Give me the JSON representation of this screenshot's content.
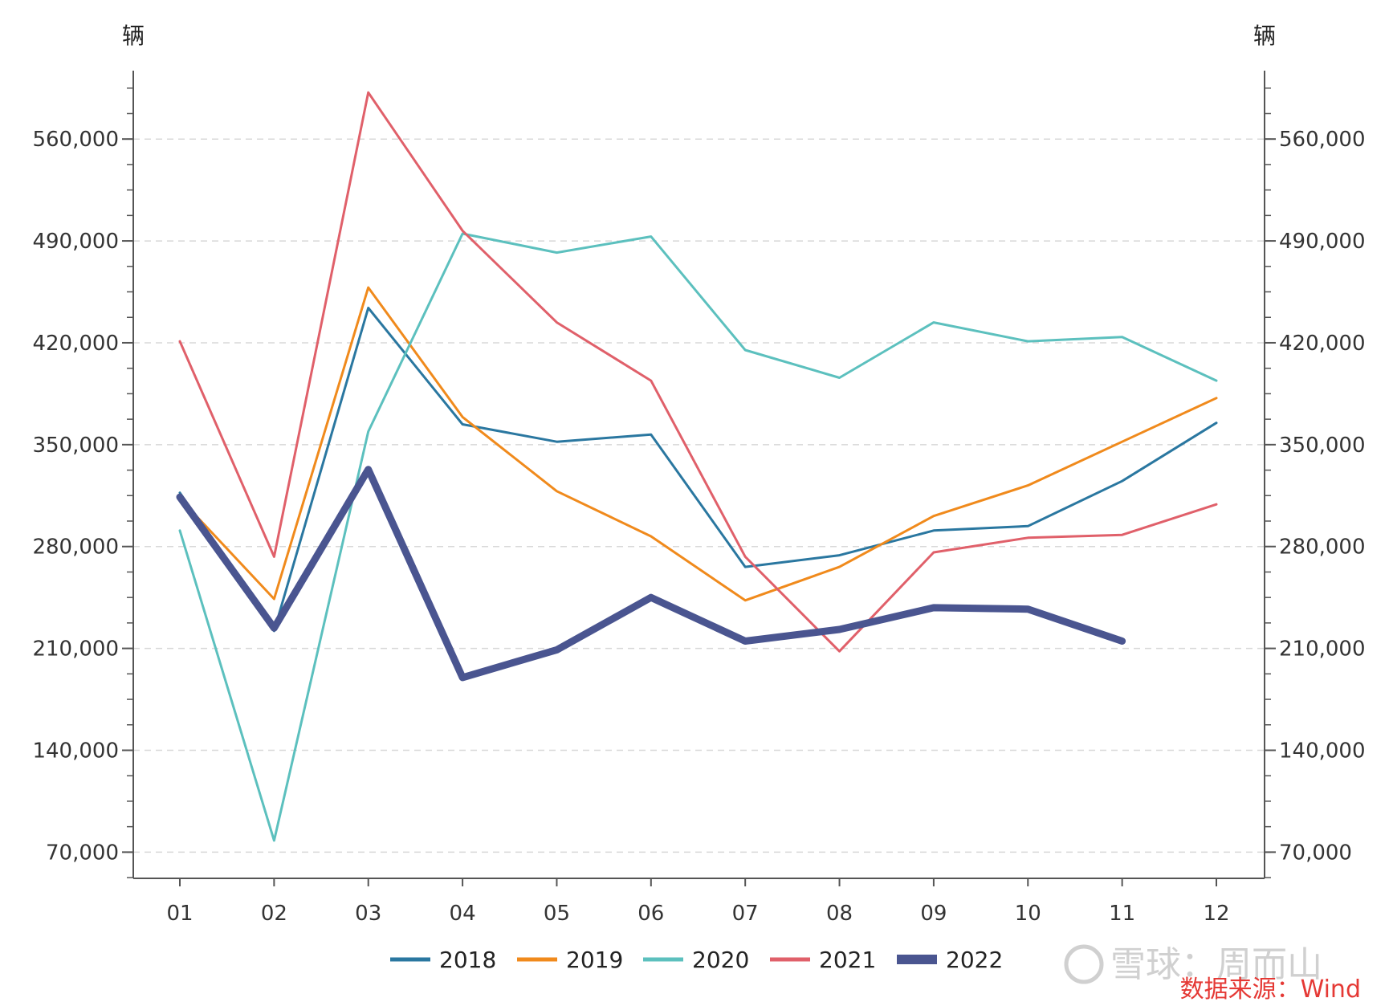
{
  "chart_data": {
    "type": "line",
    "y_unit_left": "辆",
    "y_unit_right": "辆",
    "categories": [
      "01",
      "02",
      "03",
      "04",
      "05",
      "06",
      "07",
      "08",
      "09",
      "10",
      "11",
      "12"
    ],
    "y_ticks": [
      70000,
      140000,
      210000,
      280000,
      350000,
      420000,
      490000,
      560000
    ],
    "y_tick_labels": [
      "70,000",
      "140,000",
      "210,000",
      "280,000",
      "350,000",
      "420,000",
      "490,000",
      "560,000"
    ],
    "ylim": [
      52000,
      607000
    ],
    "grid": "horizontal dashed",
    "legend_position": "bottom",
    "series": [
      {
        "name": "2018",
        "color": "#2a77a0",
        "values": [
          317000,
          222000,
          444000,
          364000,
          352000,
          357000,
          266000,
          274000,
          291000,
          294000,
          325000,
          365000
        ]
      },
      {
        "name": "2019",
        "color": "#f08a1c",
        "values": [
          313000,
          244000,
          458000,
          369000,
          318000,
          287000,
          243000,
          266000,
          301000,
          322000,
          352000,
          382000
        ]
      },
      {
        "name": "2020",
        "color": "#5cc0be",
        "values": [
          291000,
          78000,
          359000,
          495000,
          482000,
          493000,
          415000,
          396000,
          434000,
          421000,
          424000,
          394000
        ]
      },
      {
        "name": "2021",
        "color": "#e0606a",
        "values": [
          421000,
          273000,
          592000,
          497000,
          434000,
          394000,
          273000,
          208000,
          276000,
          286000,
          288000,
          309000
        ]
      },
      {
        "name": "2022",
        "color": "#4a5590",
        "values": [
          314000,
          224000,
          333000,
          190000,
          209000,
          245000,
          215000,
          223000,
          238000,
          237000,
          215000,
          null
        ]
      }
    ]
  },
  "source": "数据来源：Wind",
  "watermark": "雪球：周而山"
}
